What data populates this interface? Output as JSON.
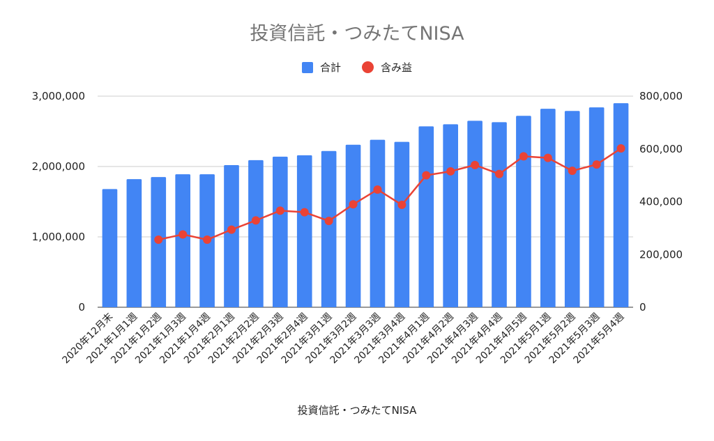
{
  "chart_data": {
    "type": "bar+line",
    "title": "投資信託・つみたてNISA",
    "xlabel": "投資信託・つみたてNISA",
    "categories": [
      "2020年12月末",
      "2021年1月1週",
      "2021年1月2週",
      "2021年1月3週",
      "2021年1月4週",
      "2021年2月1週",
      "2021年2月2週",
      "2021年2月3週",
      "2021年2月4週",
      "2021年3月1週",
      "2021年3月2週",
      "2021年3月3週",
      "2021年3月4週",
      "2021年4月1週",
      "2021年4月2週",
      "2021年4月3週",
      "2021年4月4週",
      "2021年4月5週",
      "2021年5月1週",
      "2021年5月2週",
      "2021年5月3週",
      "2021年5月4週"
    ],
    "series": [
      {
        "name": "合計",
        "type": "bar",
        "axis": "left",
        "color": "#4285f4",
        "values": [
          1680000,
          1820000,
          1850000,
          1890000,
          1890000,
          2020000,
          2090000,
          2140000,
          2160000,
          2220000,
          2310000,
          2380000,
          2350000,
          2570000,
          2600000,
          2650000,
          2630000,
          2720000,
          2820000,
          2790000,
          2840000,
          2900000
        ]
      },
      {
        "name": "含み益",
        "type": "line",
        "axis": "right",
        "color": "#ea4335",
        "values": [
          null,
          null,
          256000,
          276000,
          256000,
          294000,
          329000,
          366000,
          360000,
          327000,
          390000,
          446000,
          388000,
          500000,
          515000,
          539000,
          505000,
          572000,
          566000,
          517000,
          541000,
          602000
        ]
      }
    ],
    "y_left": {
      "range": [
        0,
        3000000
      ],
      "ticks": [
        "0",
        "1,000,000",
        "2,000,000",
        "3,000,000"
      ]
    },
    "y_right": {
      "range": [
        0,
        800000
      ],
      "ticks": [
        "0",
        "200,000",
        "400,000",
        "600,000",
        "800,000"
      ]
    },
    "grid": true,
    "legend_position": "top"
  }
}
